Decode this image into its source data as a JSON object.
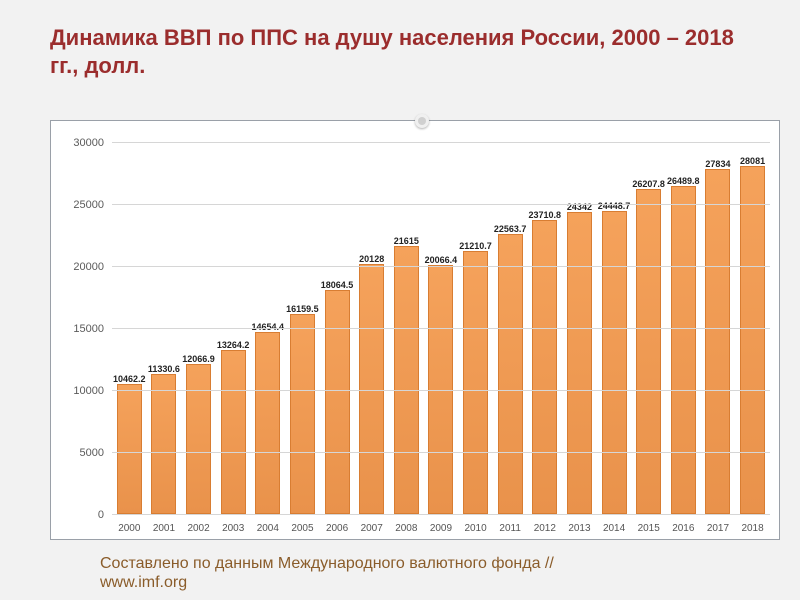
{
  "title": "Динамика ВВП по ППС на душу населения России, 2000 – 2018 гг., долл.",
  "source_line1": "Составлено по данным Международного валютного фонда //",
  "source_line2": "www.imf.org",
  "chart": {
    "type": "bar",
    "background_color": "#ffffff",
    "grid_color": "#d6d6d6",
    "bar_fill": "#ef9a52",
    "bar_border": "#d87d32",
    "label_color": "#5a5a5a",
    "value_label_fontsize": 9,
    "axis_label_fontsize": 11,
    "ylim": [
      0,
      30000
    ],
    "ytick_step": 5000,
    "yticks": [
      0,
      5000,
      10000,
      15000,
      20000,
      25000,
      30000
    ],
    "categories": [
      "2000",
      "2001",
      "2002",
      "2003",
      "2004",
      "2005",
      "2006",
      "2007",
      "2008",
      "2009",
      "2010",
      "2011",
      "2012",
      "2013",
      "2014",
      "2015",
      "2016",
      "2017",
      "2018"
    ],
    "values": [
      10462.2,
      11330.6,
      12066.9,
      13264.2,
      14654.4,
      16159.5,
      18064.5,
      20128,
      21615,
      20066.4,
      21210.7,
      22563.7,
      23710.8,
      24342,
      24448.7,
      26207.8,
      26489.8,
      27834,
      28081
    ],
    "bar_width": 0.72
  }
}
